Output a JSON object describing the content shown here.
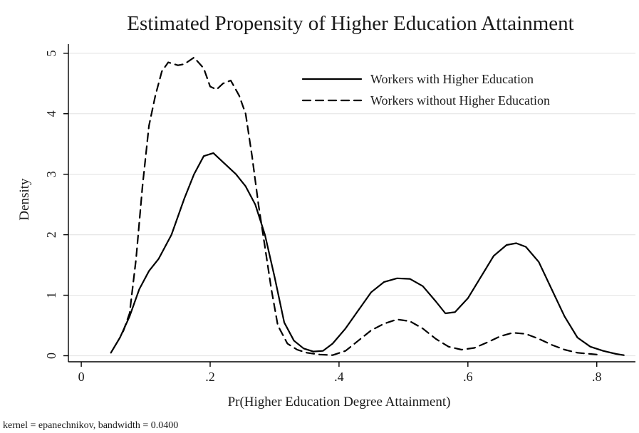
{
  "chart_data": {
    "type": "line",
    "title": "Estimated Propensity of Higher Education Attainment",
    "xlabel": "Pr(Higher Education Degree Attainment)",
    "ylabel": "Density",
    "note": "kernel = epanechnikov, bandwidth = 0.0400",
    "xlim": [
      -0.02,
      0.86
    ],
    "ylim": [
      -0.1,
      5.15
    ],
    "xticks": [
      {
        "value": 0,
        "label": "0"
      },
      {
        "value": 0.2,
        "label": ".2"
      },
      {
        "value": 0.4,
        "label": ".4"
      },
      {
        "value": 0.6,
        "label": ".6"
      },
      {
        "value": 0.8,
        "label": ".8"
      }
    ],
    "yticks": [
      {
        "value": 0,
        "label": "0"
      },
      {
        "value": 1,
        "label": "1"
      },
      {
        "value": 2,
        "label": "2"
      },
      {
        "value": 3,
        "label": "3"
      },
      {
        "value": 4,
        "label": "4"
      },
      {
        "value": 5,
        "label": "5"
      }
    ],
    "grid": true,
    "legend_position": "top-right",
    "series": [
      {
        "name": "Workers with Higher Education",
        "style": "solid",
        "color": "#000000",
        "points": [
          [
            0.046,
            0.05
          ],
          [
            0.06,
            0.3
          ],
          [
            0.075,
            0.65
          ],
          [
            0.09,
            1.1
          ],
          [
            0.105,
            1.4
          ],
          [
            0.12,
            1.6
          ],
          [
            0.14,
            2.0
          ],
          [
            0.16,
            2.6
          ],
          [
            0.175,
            3.0
          ],
          [
            0.19,
            3.3
          ],
          [
            0.205,
            3.35
          ],
          [
            0.22,
            3.2
          ],
          [
            0.24,
            3.0
          ],
          [
            0.255,
            2.8
          ],
          [
            0.27,
            2.5
          ],
          [
            0.285,
            2.0
          ],
          [
            0.3,
            1.3
          ],
          [
            0.315,
            0.55
          ],
          [
            0.33,
            0.25
          ],
          [
            0.345,
            0.12
          ],
          [
            0.36,
            0.07
          ],
          [
            0.375,
            0.08
          ],
          [
            0.39,
            0.2
          ],
          [
            0.41,
            0.45
          ],
          [
            0.43,
            0.75
          ],
          [
            0.45,
            1.05
          ],
          [
            0.47,
            1.22
          ],
          [
            0.49,
            1.28
          ],
          [
            0.51,
            1.27
          ],
          [
            0.53,
            1.15
          ],
          [
            0.55,
            0.9
          ],
          [
            0.565,
            0.7
          ],
          [
            0.58,
            0.72
          ],
          [
            0.6,
            0.95
          ],
          [
            0.62,
            1.3
          ],
          [
            0.64,
            1.65
          ],
          [
            0.66,
            1.83
          ],
          [
            0.675,
            1.86
          ],
          [
            0.69,
            1.8
          ],
          [
            0.71,
            1.55
          ],
          [
            0.73,
            1.1
          ],
          [
            0.75,
            0.65
          ],
          [
            0.77,
            0.3
          ],
          [
            0.79,
            0.15
          ],
          [
            0.81,
            0.08
          ],
          [
            0.83,
            0.03
          ],
          [
            0.842,
            0.01
          ]
        ]
      },
      {
        "name": "Workers without Higher Education",
        "style": "dashed",
        "color": "#000000",
        "points": [
          [
            0.065,
            0.4
          ],
          [
            0.075,
            0.7
          ],
          [
            0.085,
            1.6
          ],
          [
            0.095,
            2.8
          ],
          [
            0.105,
            3.8
          ],
          [
            0.115,
            4.3
          ],
          [
            0.125,
            4.7
          ],
          [
            0.135,
            4.85
          ],
          [
            0.15,
            4.8
          ],
          [
            0.16,
            4.82
          ],
          [
            0.175,
            4.93
          ],
          [
            0.19,
            4.75
          ],
          [
            0.2,
            4.45
          ],
          [
            0.21,
            4.4
          ],
          [
            0.22,
            4.5
          ],
          [
            0.232,
            4.55
          ],
          [
            0.245,
            4.3
          ],
          [
            0.255,
            4.0
          ],
          [
            0.265,
            3.3
          ],
          [
            0.275,
            2.5
          ],
          [
            0.285,
            1.8
          ],
          [
            0.295,
            1.1
          ],
          [
            0.305,
            0.5
          ],
          [
            0.32,
            0.2
          ],
          [
            0.335,
            0.1
          ],
          [
            0.35,
            0.05
          ],
          [
            0.37,
            0.02
          ],
          [
            0.39,
            0.01
          ],
          [
            0.41,
            0.08
          ],
          [
            0.43,
            0.25
          ],
          [
            0.45,
            0.42
          ],
          [
            0.47,
            0.53
          ],
          [
            0.49,
            0.6
          ],
          [
            0.51,
            0.57
          ],
          [
            0.53,
            0.45
          ],
          [
            0.55,
            0.28
          ],
          [
            0.57,
            0.15
          ],
          [
            0.59,
            0.1
          ],
          [
            0.61,
            0.13
          ],
          [
            0.63,
            0.22
          ],
          [
            0.65,
            0.32
          ],
          [
            0.67,
            0.38
          ],
          [
            0.69,
            0.36
          ],
          [
            0.71,
            0.28
          ],
          [
            0.73,
            0.18
          ],
          [
            0.75,
            0.1
          ],
          [
            0.77,
            0.05
          ],
          [
            0.79,
            0.03
          ],
          [
            0.8,
            0.02
          ]
        ]
      }
    ]
  }
}
